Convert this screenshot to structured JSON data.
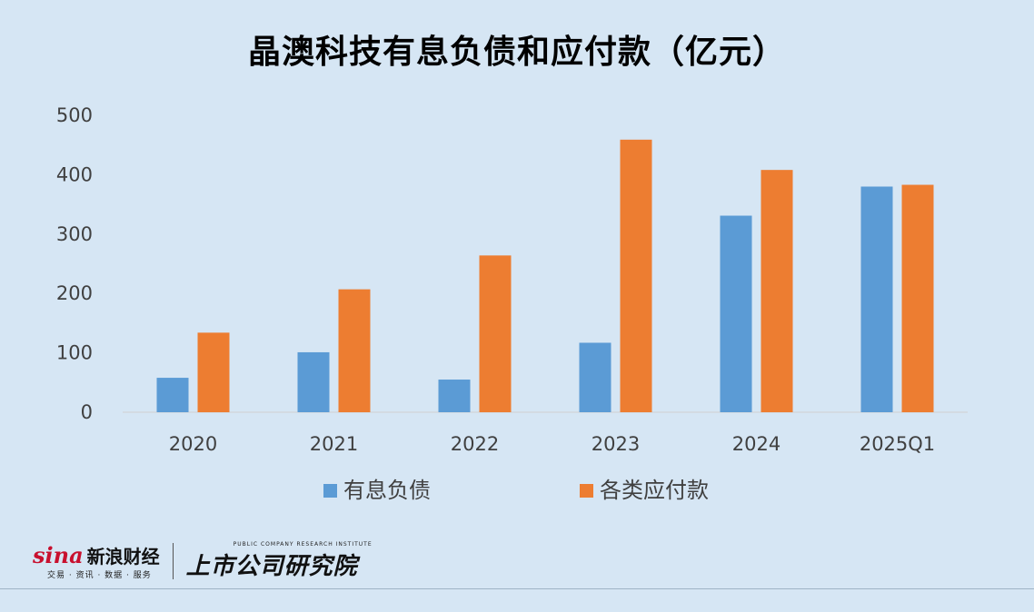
{
  "chart_data": {
    "type": "bar",
    "title": "晶澳科技有息负债和应付款（亿元）",
    "categories": [
      "2020",
      "2021",
      "2022",
      "2023",
      "2024",
      "2025Q1"
    ],
    "series": [
      {
        "name": "有息负债",
        "color": "#5b9bd5",
        "values": [
          58,
          101,
          55,
          117,
          331,
          380
        ]
      },
      {
        "name": "各类应付款",
        "color": "#ed7d31",
        "values": [
          134,
          207,
          264,
          459,
          408,
          383
        ]
      }
    ],
    "ylim": [
      0,
      500
    ],
    "yticks": [
      0,
      100,
      200,
      300,
      400,
      500
    ],
    "xlabel": "",
    "ylabel": "",
    "grid": false,
    "legend_position": "bottom"
  },
  "footer": {
    "sina_wordmark": "sina",
    "sina_name": "新浪财经",
    "sina_tagline": "交易 · 资讯 · 数据 · 服务",
    "institute_en": "PUBLIC COMPANY RESEARCH INSTITUTE",
    "institute_cn": "上市公司研究院"
  }
}
